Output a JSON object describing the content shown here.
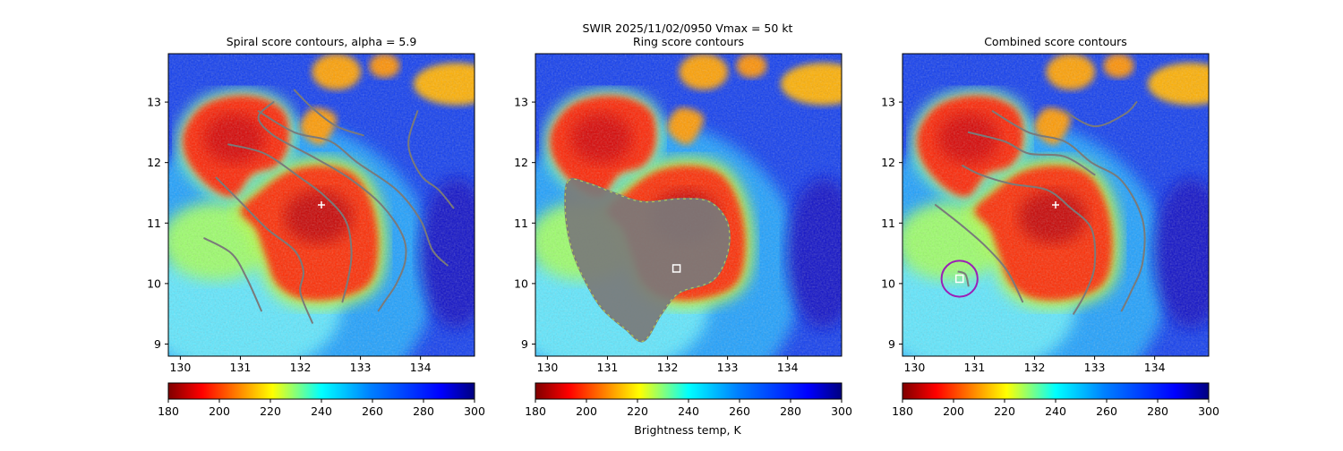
{
  "figure": {
    "suptitle_line1": "SWIR  2025/11/02/0950    Vmax = 50 kt",
    "colorbar_label": "Brightness temp, K"
  },
  "colors": {
    "contour": "#7a7a7a",
    "marker": "#ffffff",
    "circle": "#9b1fb5"
  },
  "colorbar": {
    "ticks": [
      "180",
      "200",
      "220",
      "240",
      "260",
      "280",
      "300"
    ],
    "range": [
      180,
      300
    ],
    "colormap": "jet_r"
  },
  "chart_data": [
    {
      "type": "heatmap",
      "title": "Spiral score contours, alpha =  5.9",
      "xlim": [
        129.8,
        134.9
      ],
      "ylim": [
        8.8,
        13.8
      ],
      "xticks": [
        "130",
        "131",
        "132",
        "133",
        "134"
      ],
      "yticks": [
        "9",
        "10",
        "11",
        "12",
        "13"
      ],
      "center_marker": {
        "symbol": "+",
        "lon": 132.35,
        "lat": 11.3
      },
      "contour_style": "spiral-lines"
    },
    {
      "type": "heatmap",
      "title": "Ring score contours",
      "xlim": [
        129.8,
        134.9
      ],
      "ylim": [
        8.8,
        13.8
      ],
      "xticks": [
        "130",
        "131",
        "132",
        "133",
        "134"
      ],
      "yticks": [
        "9",
        "10",
        "11",
        "12",
        "13"
      ],
      "center_marker": {
        "symbol": "square",
        "lon": 132.15,
        "lat": 10.25
      },
      "contour_style": "ring-blob"
    },
    {
      "type": "heatmap",
      "title": "Combined score contours",
      "xlim": [
        129.8,
        134.9
      ],
      "ylim": [
        8.8,
        13.8
      ],
      "xticks": [
        "130",
        "131",
        "132",
        "133",
        "134"
      ],
      "yticks": [
        "9",
        "10",
        "11",
        "12",
        "13"
      ],
      "center_marker": {
        "symbol": "+",
        "lon": 132.35,
        "lat": 11.3
      },
      "secondary_marker": {
        "symbol": "square",
        "lon": 130.75,
        "lat": 10.08
      },
      "circle_marker": {
        "lon": 130.75,
        "lat": 10.08,
        "radius_deg": 0.3
      },
      "contour_style": "spiral-lines"
    }
  ]
}
